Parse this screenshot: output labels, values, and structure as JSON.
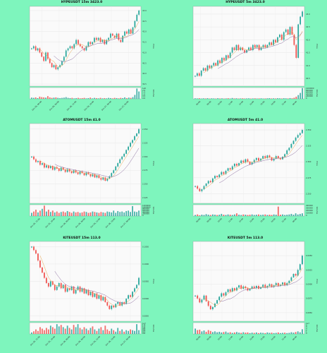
{
  "charts": [
    {
      "title": "HYPEUSDT 15m 3423.0",
      "ylabel": "Price",
      "vol_label": "Volume",
      "y_ticks": [
        "43.0",
        "42.5",
        "42.0",
        "41.5",
        "41.0",
        "40.5",
        "40.0",
        "39.5"
      ],
      "ylim": [
        39.4,
        43.2
      ],
      "vol_ticks": [
        "1e6",
        "2.0",
        "1.5",
        "1.0",
        "0.5",
        "0.0"
      ],
      "x_ticks": [
        "Dec 06, 00:00",
        "Dec 06, 06:00",
        "Dec 06, 12:00",
        "Dec 06, 18:00",
        "Dec 07, 00:00",
        "Dec 07, 06:00"
      ],
      "closes": [
        41.2,
        41.3,
        41.1,
        41.2,
        41.0,
        40.8,
        40.6,
        41.0,
        40.7,
        40.5,
        40.3,
        40.4,
        40.2,
        40.3,
        40.4,
        40.6,
        40.8,
        41.1,
        41.2,
        41.3,
        41.2,
        41.4,
        41.6,
        41.4,
        41.3,
        41.2,
        41.1,
        41.3,
        41.5,
        41.4,
        41.5,
        41.7,
        41.6,
        41.7,
        41.5,
        41.6,
        41.4,
        41.6,
        41.7,
        41.9,
        41.8,
        41.7,
        41.9,
        41.6,
        41.5,
        41.8,
        42.0,
        41.9,
        42.1,
        41.9,
        42.2,
        42.5,
        42.8,
        43.0
      ],
      "volumes": [
        0.25,
        0.2,
        0.3,
        0.15,
        0.45,
        0.35,
        0.3,
        0.25,
        0.55,
        0.3,
        0.2,
        0.25,
        0.3,
        0.2,
        0.15,
        0.2,
        0.25,
        0.35,
        0.2,
        0.15,
        0.2,
        0.1,
        0.15,
        0.2,
        0.1,
        0.15,
        0.2,
        0.1,
        0.15,
        0.25,
        0.1,
        0.2,
        0.15,
        0.1,
        0.2,
        0.1,
        0.15,
        0.1,
        0.2,
        0.15,
        0.1,
        0.2,
        0.15,
        0.1,
        0.2,
        0.15,
        0.3,
        0.15,
        0.25,
        0.2,
        0.35,
        0.8,
        2.1,
        1.5
      ],
      "volmax": 2.3
    },
    {
      "title": "HYPEUSDT 5m 3423.0",
      "ylabel": "Price",
      "vol_label": "Volume",
      "y_ticks": [
        "43.0",
        "42.5",
        "42.0",
        "41.5",
        "41.0",
        "40.5"
      ],
      "ylim": [
        40.2,
        43.3
      ],
      "vol_ticks": [
        "1000000",
        "800000",
        "600000",
        "400000",
        "200000",
        "0"
      ],
      "x_ticks": [
        "06:00",
        "08:00",
        "10:00",
        "12:00",
        "14:00",
        "16:00",
        "18:00",
        "20:00",
        "22:00",
        "00:00"
      ],
      "closes": [
        40.6,
        40.7,
        40.6,
        40.8,
        40.9,
        40.8,
        41.0,
        40.9,
        41.0,
        41.1,
        41.0,
        41.2,
        41.1,
        41.3,
        41.2,
        41.4,
        41.3,
        41.5,
        41.7,
        41.6,
        41.8,
        41.6,
        41.7,
        41.6,
        41.5,
        41.6,
        41.7,
        41.6,
        41.8,
        41.7,
        41.8,
        41.6,
        41.7,
        41.8,
        41.7,
        41.8,
        41.9,
        41.8,
        42.0,
        41.9,
        42.1,
        42.2,
        42.0,
        42.3,
        42.4,
        42.2,
        42.5,
        42.2,
        41.8,
        41.3,
        42.6,
        42.9,
        43.1
      ],
      "volumes": [
        0.05,
        0.04,
        0.06,
        0.03,
        0.05,
        0.04,
        0.06,
        0.03,
        0.05,
        0.04,
        0.03,
        0.06,
        0.04,
        0.05,
        0.03,
        0.04,
        0.06,
        0.03,
        0.08,
        0.04,
        0.05,
        0.03,
        0.04,
        0.05,
        0.03,
        0.04,
        0.05,
        0.03,
        0.04,
        0.05,
        0.03,
        0.04,
        0.05,
        0.03,
        0.04,
        0.05,
        0.06,
        0.04,
        0.05,
        0.04,
        0.06,
        0.05,
        0.04,
        0.06,
        0.05,
        0.04,
        0.07,
        0.05,
        0.1,
        0.2,
        0.35,
        0.55,
        1.0
      ],
      "volmax": 1.05
    },
    {
      "title": "ATOMUSDT 15m 41.0",
      "ylabel": "Price",
      "vol_label": "Volume",
      "y_ticks": [
        "2.350",
        "2.325",
        "2.300",
        "2.275",
        "2.250",
        "2.225"
      ],
      "ylim": [
        2.215,
        2.36
      ],
      "vol_ticks": [
        "1200000",
        "1000000",
        "800000",
        "600000",
        "400000",
        "200000",
        "0"
      ],
      "x_ticks": [
        "Dec 05, 12:00",
        "Dec 05, 18:00",
        "Dec 06, 00:00",
        "Dec 06, 06:00",
        "Dec 06, 12:00",
        "Dec 06, 18:00",
        "Dec 07, 00:00"
      ],
      "closes": [
        2.3,
        2.295,
        2.29,
        2.292,
        2.285,
        2.288,
        2.28,
        2.284,
        2.279,
        2.283,
        2.276,
        2.281,
        2.278,
        2.274,
        2.28,
        2.276,
        2.272,
        2.277,
        2.273,
        2.27,
        2.275,
        2.271,
        2.268,
        2.273,
        2.27,
        2.266,
        2.271,
        2.268,
        2.264,
        2.268,
        2.262,
        2.266,
        2.261,
        2.258,
        2.262,
        2.256,
        2.26,
        2.264,
        2.27,
        2.275,
        2.282,
        2.288,
        2.295,
        2.3,
        2.305,
        2.312,
        2.318,
        2.325,
        2.33,
        2.337,
        2.342,
        2.35
      ],
      "volumes": [
        0.35,
        0.5,
        0.7,
        0.4,
        0.6,
        0.8,
        1.15,
        0.5,
        0.7,
        0.45,
        0.6,
        0.4,
        0.5,
        0.35,
        0.45,
        0.5,
        0.4,
        0.55,
        0.45,
        0.35,
        0.5,
        0.4,
        0.45,
        0.35,
        0.4,
        0.5,
        0.45,
        0.35,
        0.4,
        0.5,
        0.45,
        0.4,
        0.35,
        0.45,
        0.4,
        0.35,
        0.5,
        0.45,
        0.4,
        0.6,
        0.35,
        0.55,
        0.45,
        0.5,
        0.4,
        0.55,
        0.6,
        0.45,
        1.1,
        0.5,
        0.45,
        0.6
      ],
      "volmax": 1.25
    },
    {
      "title": "ATOMUSDT 5m 41.0",
      "ylabel": "Price",
      "vol_label": "Volume",
      "y_ticks": [
        "2.350",
        "2.325",
        "2.300",
        "2.275",
        "2.250",
        "2.225"
      ],
      "ylim": [
        2.235,
        2.36
      ],
      "vol_ticks": [
        "400000",
        "300000",
        "200000",
        "100000",
        "0"
      ],
      "x_ticks": [
        "06:00",
        "08:00",
        "10:00",
        "12:00",
        "14:00",
        "16:00",
        "18:00",
        "20:00",
        "22:00",
        "00:00"
      ],
      "closes": [
        2.262,
        2.258,
        2.254,
        2.257,
        2.262,
        2.266,
        2.27,
        2.268,
        2.274,
        2.278,
        2.276,
        2.28,
        2.284,
        2.281,
        2.286,
        2.29,
        2.288,
        2.293,
        2.297,
        2.294,
        2.298,
        2.302,
        2.299,
        2.304,
        2.3,
        2.296,
        2.299,
        2.303,
        2.306,
        2.302,
        2.305,
        2.309,
        2.306,
        2.31,
        2.307,
        2.302,
        2.305,
        2.309,
        2.306,
        2.304,
        2.308,
        2.312,
        2.318,
        2.322,
        2.328,
        2.333,
        2.338,
        2.342,
        2.345,
        2.35
      ],
      "volumes": [
        0.04,
        0.06,
        0.03,
        0.05,
        0.04,
        0.07,
        0.05,
        0.04,
        0.06,
        0.05,
        0.04,
        0.05,
        0.08,
        0.05,
        0.04,
        0.06,
        0.05,
        0.04,
        0.06,
        0.1,
        0.05,
        0.04,
        0.06,
        0.05,
        0.04,
        0.05,
        0.06,
        0.04,
        0.05,
        0.06,
        0.04,
        0.05,
        0.06,
        0.04,
        0.05,
        0.04,
        0.06,
        0.05,
        0.35,
        0.05,
        0.06,
        0.04,
        0.05,
        0.06,
        0.08,
        0.05,
        0.1,
        0.06,
        0.08,
        0.1
      ],
      "volmax": 0.42
    },
    {
      "title": "KITEUSDT 15m 113.0",
      "ylabel": "Price",
      "vol_label": "Volume",
      "y_ticks": [
        "0.1050",
        "0.1000",
        "0.0950",
        "0.0900",
        "0.0850"
      ],
      "ylim": [
        0.0835,
        0.1065
      ],
      "vol_ticks": [
        "1e7",
        "1.4",
        "1.2",
        "1.0",
        "0.8",
        "0.6",
        "0.4",
        "0.2",
        "0.0"
      ],
      "x_ticks": [
        "Dec 05, 12:00",
        "Dec 05, 18:00",
        "Dec 06, 00:00",
        "Dec 06, 06:00",
        "Dec 06, 12:00",
        "Dec 06, 18:00",
        "Dec 07, 00:00"
      ],
      "closes": [
        0.105,
        0.104,
        0.103,
        0.101,
        0.099,
        0.0975,
        0.096,
        0.0945,
        0.0935,
        0.095,
        0.094,
        0.0925,
        0.0935,
        0.0945,
        0.093,
        0.094,
        0.092,
        0.093,
        0.0925,
        0.0935,
        0.0915,
        0.0925,
        0.0935,
        0.092,
        0.093,
        0.0915,
        0.0925,
        0.091,
        0.092,
        0.0905,
        0.0915,
        0.09,
        0.091,
        0.0895,
        0.0905,
        0.089,
        0.088,
        0.087,
        0.088,
        0.0875,
        0.0885,
        0.089,
        0.088,
        0.089,
        0.0885,
        0.09,
        0.091,
        0.0905,
        0.092,
        0.093,
        0.094,
        0.096
      ],
      "volumes": [
        0.2,
        0.35,
        0.6,
        0.4,
        0.9,
        0.7,
        0.5,
        0.8,
        0.6,
        1.1,
        0.9,
        0.7,
        1.3,
        1.0,
        1.2,
        0.9,
        0.7,
        1.1,
        0.8,
        0.6,
        1.2,
        0.9,
        1.3,
        0.8,
        0.6,
        0.9,
        0.7,
        0.5,
        0.8,
        1.0,
        0.6,
        0.4,
        0.7,
        0.9,
        0.5,
        1.1,
        0.6,
        0.4,
        0.7,
        0.5,
        0.3,
        0.8,
        0.4,
        0.6,
        0.3,
        0.5,
        0.4,
        0.6,
        0.5,
        0.4,
        1.3,
        0.5
      ],
      "volmax": 1.5
    },
    {
      "title": "KITEUSDT 5m 113.0",
      "ylabel": "Price",
      "vol_label": "Volume",
      "y_ticks": [
        "0.0950",
        "0.0925",
        "0.0900",
        "0.0875",
        "0.0850"
      ],
      "ylim": [
        0.0835,
        0.0975
      ],
      "vol_ticks": [
        "1e7",
        "5",
        "4",
        "3",
        "2",
        "1",
        "0"
      ],
      "x_ticks": [
        "06:00",
        "08:00",
        "10:00",
        "12:00",
        "14:00",
        "16:00",
        "18:00",
        "20:00",
        "22:00",
        "00:00"
      ],
      "closes": [
        0.088,
        0.0875,
        0.0868,
        0.0873,
        0.088,
        0.087,
        0.0862,
        0.0856,
        0.086,
        0.0866,
        0.0872,
        0.0878,
        0.0884,
        0.088,
        0.0886,
        0.0891,
        0.0887,
        0.0893,
        0.0889,
        0.0894,
        0.0898,
        0.0892,
        0.0896,
        0.0893,
        0.0889,
        0.0892,
        0.0896,
        0.0893,
        0.0897,
        0.0892,
        0.0895,
        0.0899,
        0.0894,
        0.0897,
        0.09,
        0.0895,
        0.0898,
        0.0902,
        0.0897,
        0.0899,
        0.0903,
        0.0898,
        0.0902,
        0.0906,
        0.0912,
        0.0918,
        0.0915,
        0.0925,
        0.0935,
        0.095
      ],
      "volumes": [
        2.5,
        1.8,
        2.0,
        1.2,
        1.6,
        1.0,
        1.8,
        1.4,
        0.9,
        1.2,
        0.8,
        1.0,
        0.7,
        0.9,
        1.1,
        0.6,
        0.8,
        0.5,
        0.7,
        0.9,
        0.6,
        0.5,
        0.8,
        0.6,
        0.7,
        0.4,
        0.6,
        0.5,
        0.7,
        0.4,
        0.6,
        0.5,
        0.4,
        0.7,
        0.5,
        0.6,
        0.4,
        0.5,
        0.7,
        0.4,
        0.5,
        0.6,
        0.4,
        0.5,
        0.8,
        0.6,
        0.9,
        1.2,
        0.8,
        2.2
      ],
      "volmax": 5.3
    }
  ]
}
